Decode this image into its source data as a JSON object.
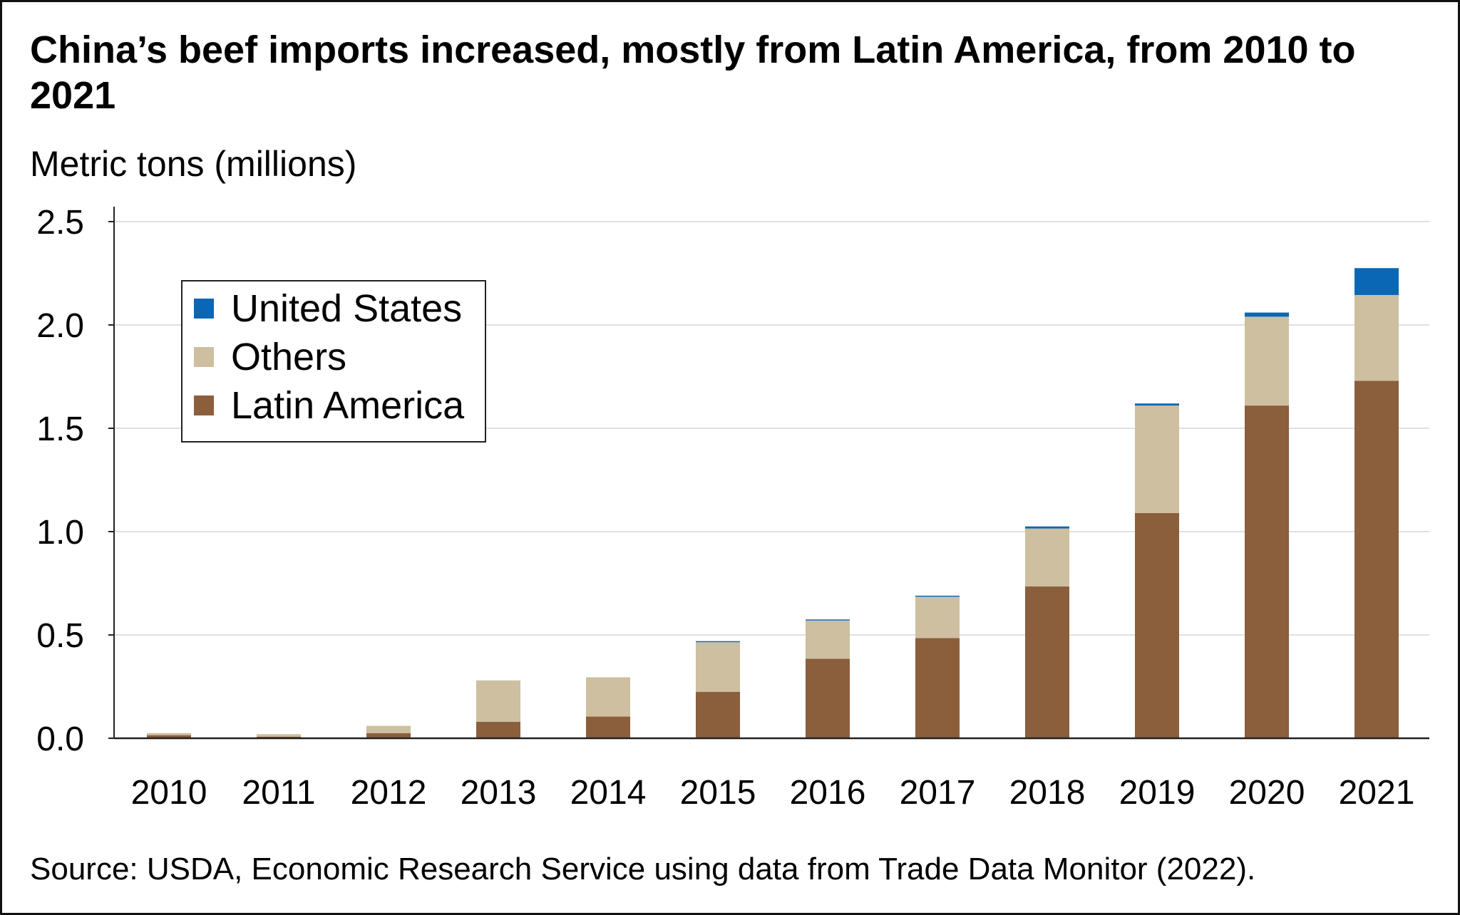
{
  "title": "China’s beef imports increased, mostly from Latin America, from 2010 to 2021",
  "source": "Source: USDA, Economic Research Service using data from Trade Data Monitor (2022).",
  "chart_data": {
    "type": "bar",
    "stacked": true,
    "title": "China’s beef imports increased, mostly from Latin America, from 2010 to 2021",
    "ylabel": "Metric tons (millions)",
    "xlabel": "",
    "ylim": [
      0,
      2.5
    ],
    "yticks": [
      "0.0",
      "0.5",
      "1.0",
      "1.5",
      "2.0",
      "2.5"
    ],
    "ytick_values": [
      0,
      0.5,
      1.0,
      1.5,
      2.0,
      2.5
    ],
    "grid": true,
    "legend_position": "top-left",
    "categories": [
      "2010",
      "2011",
      "2012",
      "2013",
      "2014",
      "2015",
      "2016",
      "2017",
      "2018",
      "2019",
      "2020",
      "2021"
    ],
    "series": [
      {
        "name": "Latin America",
        "color": "#8b5e3c",
        "values": [
          0.015,
          0.008,
          0.025,
          0.08,
          0.105,
          0.225,
          0.385,
          0.485,
          0.735,
          1.09,
          1.61,
          1.73
        ]
      },
      {
        "name": "Others",
        "color": "#cdbf9f",
        "values": [
          0.01,
          0.012,
          0.035,
          0.2,
          0.19,
          0.24,
          0.185,
          0.2,
          0.28,
          0.52,
          0.43,
          0.415
        ]
      },
      {
        "name": "United States",
        "color": "#0a67b5",
        "values": [
          0.0,
          0.0,
          0.0,
          0.0,
          0.0,
          0.005,
          0.005,
          0.005,
          0.01,
          0.01,
          0.02,
          0.13
        ]
      }
    ],
    "legend_order": [
      "United States",
      "Others",
      "Latin America"
    ]
  }
}
